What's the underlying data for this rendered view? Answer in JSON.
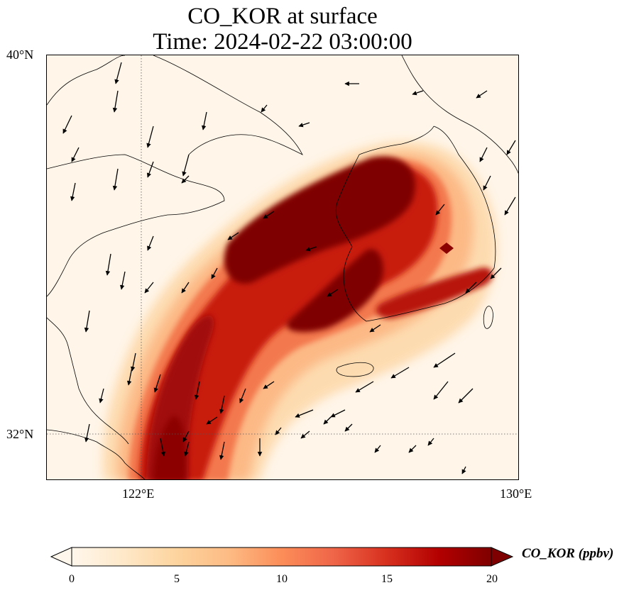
{
  "title": {
    "line1": "CO_KOR at surface",
    "line2": "Time: 2024-02-22 03:00:00"
  },
  "map": {
    "extent": {
      "lon_min": 119.6,
      "lon_max": 130,
      "lat_min": 31,
      "lat_max": 40
    },
    "lat_ticks": [
      {
        "value": 40,
        "label": "40°N"
      },
      {
        "value": 32,
        "label": "32°N"
      }
    ],
    "lon_ticks": [
      {
        "value": 122,
        "label": "122°E"
      },
      {
        "value": 130,
        "label": "130°E"
      }
    ],
    "gridlines": {
      "lon": 122,
      "lat": 32,
      "style": "dotted"
    },
    "field": "CO_KOR",
    "plume_description_values": {
      "background_ppbv": 0.5,
      "core_max_ppbv": 20
    },
    "wind_vectors": "present"
  },
  "colorbar": {
    "label": "CO_KOR (ppbv)",
    "min": 0,
    "max": 20,
    "ticks": [
      {
        "value": 0,
        "label": "0"
      },
      {
        "value": 5,
        "label": "5"
      },
      {
        "value": 10,
        "label": "10"
      },
      {
        "value": 15,
        "label": "15"
      },
      {
        "value": 20,
        "label": "20"
      }
    ],
    "colormap": "OrRd",
    "extend": "both",
    "colors": [
      "#fff7ec",
      "#fee8c8",
      "#fdd49e",
      "#fdbb84",
      "#fc8d59",
      "#ef6548",
      "#d7301f",
      "#b30000",
      "#7f0000"
    ]
  }
}
